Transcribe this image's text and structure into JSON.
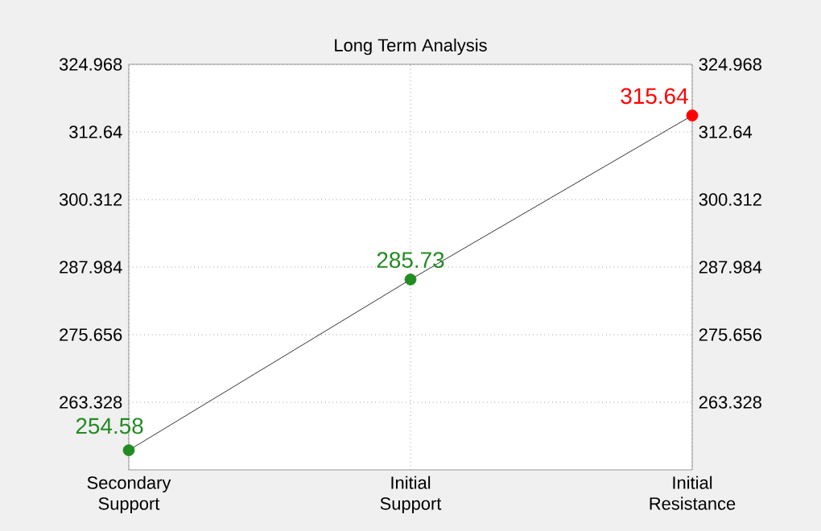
{
  "chart_data": {
    "type": "line",
    "title": "Long Term Analysis",
    "categories": [
      "Secondary Support",
      "Initial Support",
      "Initial Resistance"
    ],
    "values": [
      254.58,
      285.73,
      315.64
    ],
    "color": "#000000",
    "colors": [
      "#228b22",
      "#228b22",
      "#ff0000"
    ],
    "marker": "circle",
    "data_labels": true,
    "grid": true,
    "ylim": [
      251.0,
      324.968
    ],
    "yticks": [
      263.328,
      275.656,
      287.984,
      300.312,
      312.64,
      324.968
    ],
    "y2lim": [
      251.0,
      324.968
    ],
    "y2ticks": [
      263.328,
      275.656,
      287.984,
      300.312,
      312.64,
      324.968
    ]
  }
}
